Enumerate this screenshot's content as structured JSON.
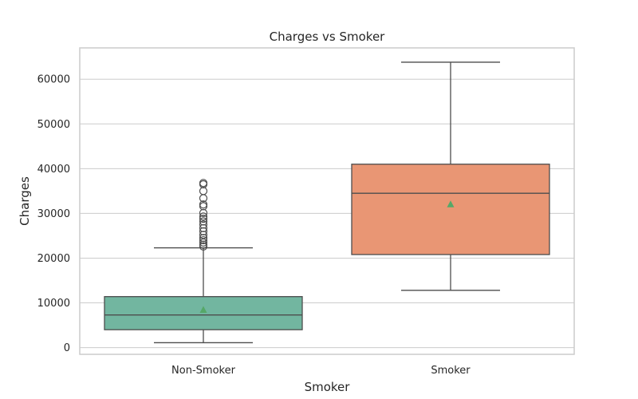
{
  "chart_data": {
    "type": "box",
    "title": "Charges vs Smoker",
    "xlabel": "Smoker",
    "ylabel": "Charges",
    "ylim": [
      -1500,
      67000
    ],
    "yticks": [
      0,
      10000,
      20000,
      30000,
      40000,
      50000,
      60000
    ],
    "ytick_labels": [
      "0",
      "10000",
      "20000",
      "30000",
      "40000",
      "50000",
      "60000"
    ],
    "grid": "horizontal",
    "categories": [
      "Non-Smoker",
      "Smoker"
    ],
    "boxes": [
      {
        "category": "Non-Smoker",
        "color": "#72b6a0",
        "whisker_low": 1100,
        "q1": 4000,
        "median": 7300,
        "q3": 11400,
        "whisker_high": 22300,
        "mean": 8400,
        "outliers": [
          22600,
          23000,
          23500,
          24000,
          24500,
          25200,
          26000,
          26700,
          27500,
          28200,
          28800,
          29300,
          30100,
          31600,
          32000,
          33400,
          35000,
          36500,
          36800
        ]
      },
      {
        "category": "Smoker",
        "color": "#e99674",
        "whisker_low": 12800,
        "q1": 20800,
        "median": 34500,
        "q3": 41000,
        "whisker_high": 63800,
        "mean": 32000,
        "outliers": []
      }
    ],
    "mean_marker_color": "#55a868"
  }
}
